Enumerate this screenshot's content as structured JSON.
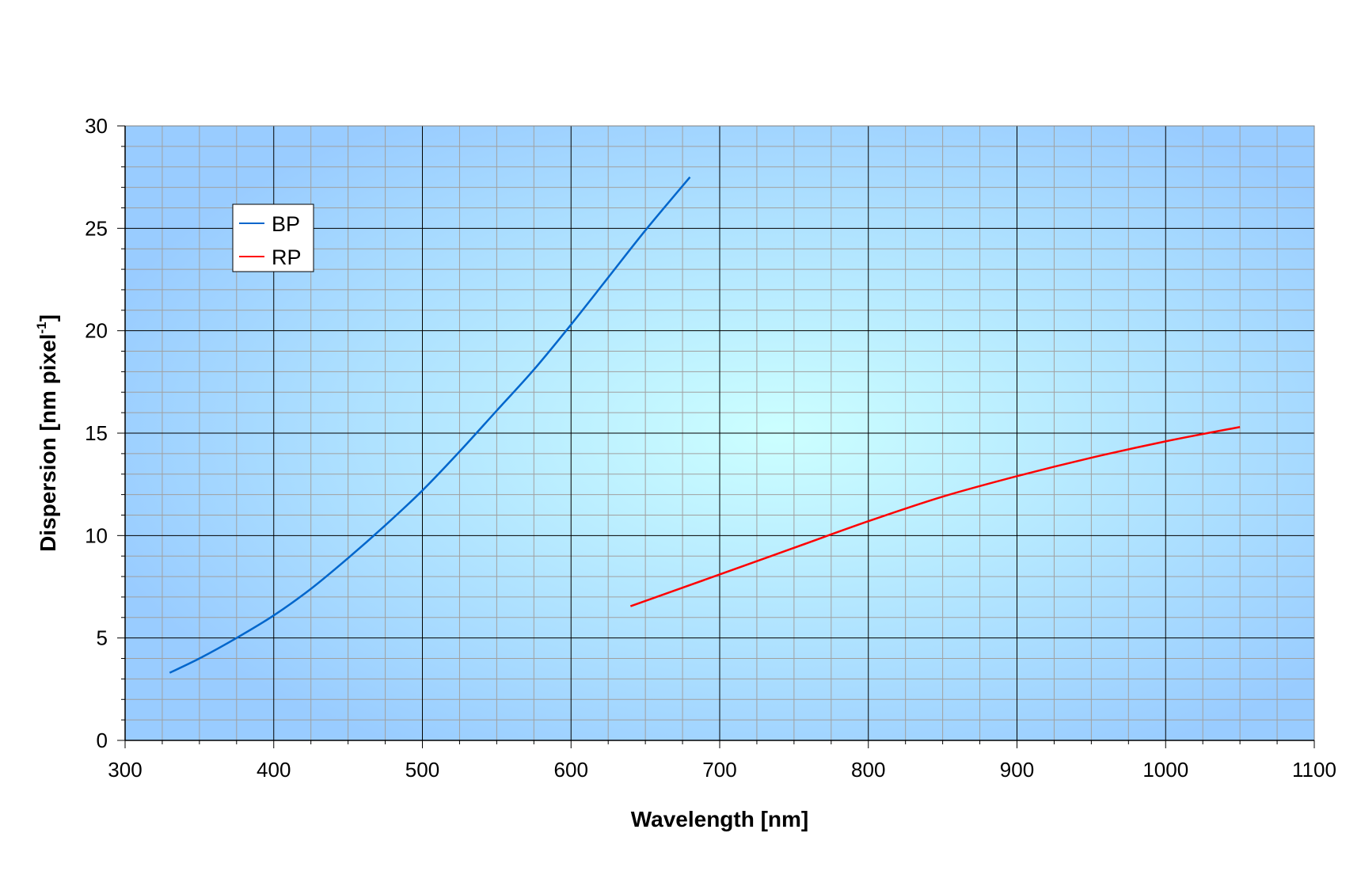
{
  "chart_data": {
    "type": "line",
    "title": "",
    "xlabel": "Wavelength [nm]",
    "ylabel": "Dispersion [nm pixel",
    "ylabel_superscript": "-1",
    "ylabel_suffix": "]",
    "xlim": [
      300,
      1100
    ],
    "ylim": [
      0,
      30
    ],
    "x_ticks": [
      300,
      400,
      500,
      600,
      700,
      800,
      900,
      1000,
      1100
    ],
    "y_ticks": [
      0,
      5,
      10,
      15,
      20,
      25,
      30
    ],
    "x_minor_step": 25,
    "y_minor_step": 1,
    "grid": true,
    "legend_position": "top-left",
    "background": "radial gradient light cyan center to blue edges",
    "colors": {
      "plot_center": "#ccffff",
      "plot_edge": "#99ccff",
      "major_grid": "#000000",
      "minor_grid": "#a0a0a0"
    },
    "series": [
      {
        "name": "BP",
        "color": "#0066cc",
        "x": [
          330,
          350,
          375,
          400,
          425,
          450,
          475,
          500,
          525,
          550,
          575,
          600,
          625,
          650,
          680
        ],
        "y": [
          3.3,
          4.0,
          5.0,
          6.1,
          7.4,
          8.9,
          10.5,
          12.2,
          14.1,
          16.1,
          18.1,
          20.3,
          22.6,
          24.9,
          27.5
        ]
      },
      {
        "name": "RP",
        "color": "#ff0000",
        "x": [
          640,
          700,
          750,
          800,
          850,
          900,
          950,
          1000,
          1050
        ],
        "y": [
          6.55,
          8.1,
          9.4,
          10.7,
          11.9,
          12.9,
          13.8,
          14.6,
          15.3
        ]
      }
    ]
  }
}
